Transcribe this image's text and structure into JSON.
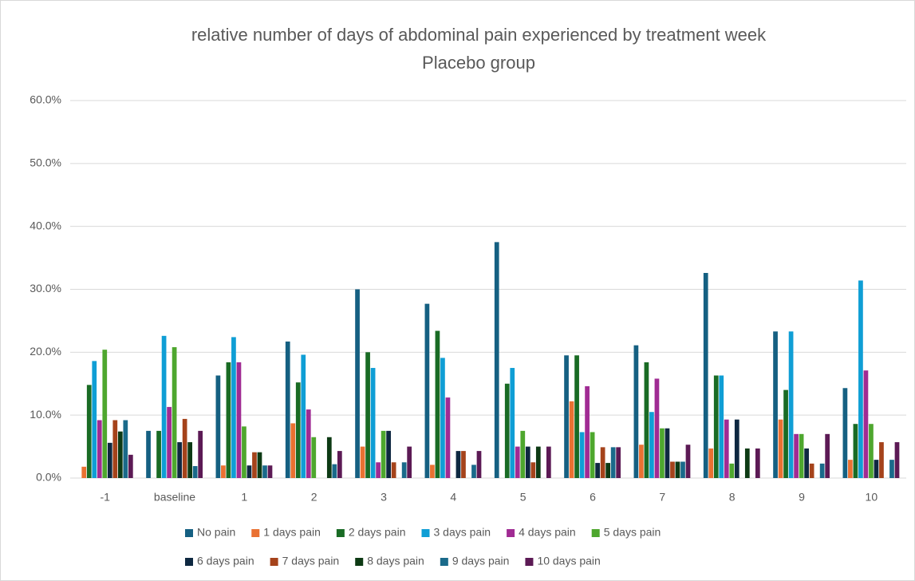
{
  "chart_data": {
    "type": "bar",
    "title": "relative number of days of abdominal pain experienced by treatment week",
    "subtitle": "Placebo group",
    "categories": [
      "-1",
      "baseline",
      "1",
      "2",
      "3",
      "4",
      "5",
      "6",
      "7",
      "8",
      "9",
      "10"
    ],
    "series": [
      {
        "name": "No pain",
        "color": "#156082",
        "values": [
          0,
          7.5,
          16.3,
          21.7,
          30.0,
          27.7,
          37.5,
          19.5,
          21.1,
          32.6,
          23.3,
          14.3
        ]
      },
      {
        "name": "1 days pain",
        "color": "#e97132",
        "values": [
          1.8,
          0,
          2.0,
          8.7,
          5.0,
          2.1,
          0,
          12.2,
          5.3,
          4.7,
          9.3,
          2.9
        ]
      },
      {
        "name": "2 days pain",
        "color": "#196b24",
        "values": [
          14.8,
          7.5,
          18.4,
          15.2,
          20.0,
          23.4,
          15.0,
          19.5,
          18.4,
          16.3,
          14.0,
          8.6
        ]
      },
      {
        "name": "3 days pain",
        "color": "#0f9ed5",
        "values": [
          18.6,
          22.6,
          22.4,
          19.6,
          17.5,
          19.1,
          17.5,
          7.3,
          10.5,
          16.3,
          23.3,
          31.4
        ]
      },
      {
        "name": "4 days pain",
        "color": "#a02b93",
        "values": [
          9.2,
          11.3,
          18.4,
          10.9,
          2.5,
          12.8,
          5.0,
          14.6,
          15.8,
          9.3,
          7.0,
          17.1
        ]
      },
      {
        "name": "5 days pain",
        "color": "#4ea72e",
        "values": [
          20.4,
          20.8,
          8.2,
          6.5,
          7.5,
          0,
          7.5,
          7.3,
          7.9,
          2.3,
          7.0,
          8.6
        ]
      },
      {
        "name": "6 days pain",
        "color": "#0e2841",
        "values": [
          5.6,
          5.7,
          2.0,
          0,
          7.5,
          4.3,
          5.0,
          2.4,
          7.9,
          9.3,
          4.7,
          2.9
        ]
      },
      {
        "name": "7 days pain",
        "color": "#a5431b",
        "values": [
          9.2,
          9.4,
          4.1,
          0,
          2.5,
          4.3,
          2.5,
          4.9,
          2.6,
          0,
          2.3,
          5.7
        ]
      },
      {
        "name": "8 days pain",
        "color": "#0d3a14",
        "values": [
          7.4,
          5.7,
          4.1,
          6.5,
          0,
          0,
          5.0,
          2.4,
          2.6,
          4.7,
          0,
          0
        ]
      },
      {
        "name": "9 days pain",
        "color": "#1a6a8a",
        "values": [
          9.2,
          1.9,
          2.0,
          2.2,
          2.5,
          2.1,
          0,
          4.9,
          2.6,
          0,
          2.3,
          2.9
        ]
      },
      {
        "name": "10 days pain",
        "color": "#5c1a55",
        "values": [
          3.7,
          7.5,
          2.0,
          4.3,
          5.0,
          4.3,
          5.0,
          4.9,
          5.3,
          4.7,
          7.0,
          5.7
        ]
      }
    ],
    "ylim": [
      0,
      60
    ],
    "yticks": [
      {
        "value": 0,
        "label": "0.0%"
      },
      {
        "value": 10,
        "label": "10.0%"
      },
      {
        "value": 20,
        "label": "20.0%"
      },
      {
        "value": 30,
        "label": "30.0%"
      },
      {
        "value": 40,
        "label": "40.0%"
      },
      {
        "value": 50,
        "label": "50.0%"
      },
      {
        "value": 60,
        "label": "60.0%"
      }
    ],
    "grid": true,
    "legend": "bottom"
  }
}
